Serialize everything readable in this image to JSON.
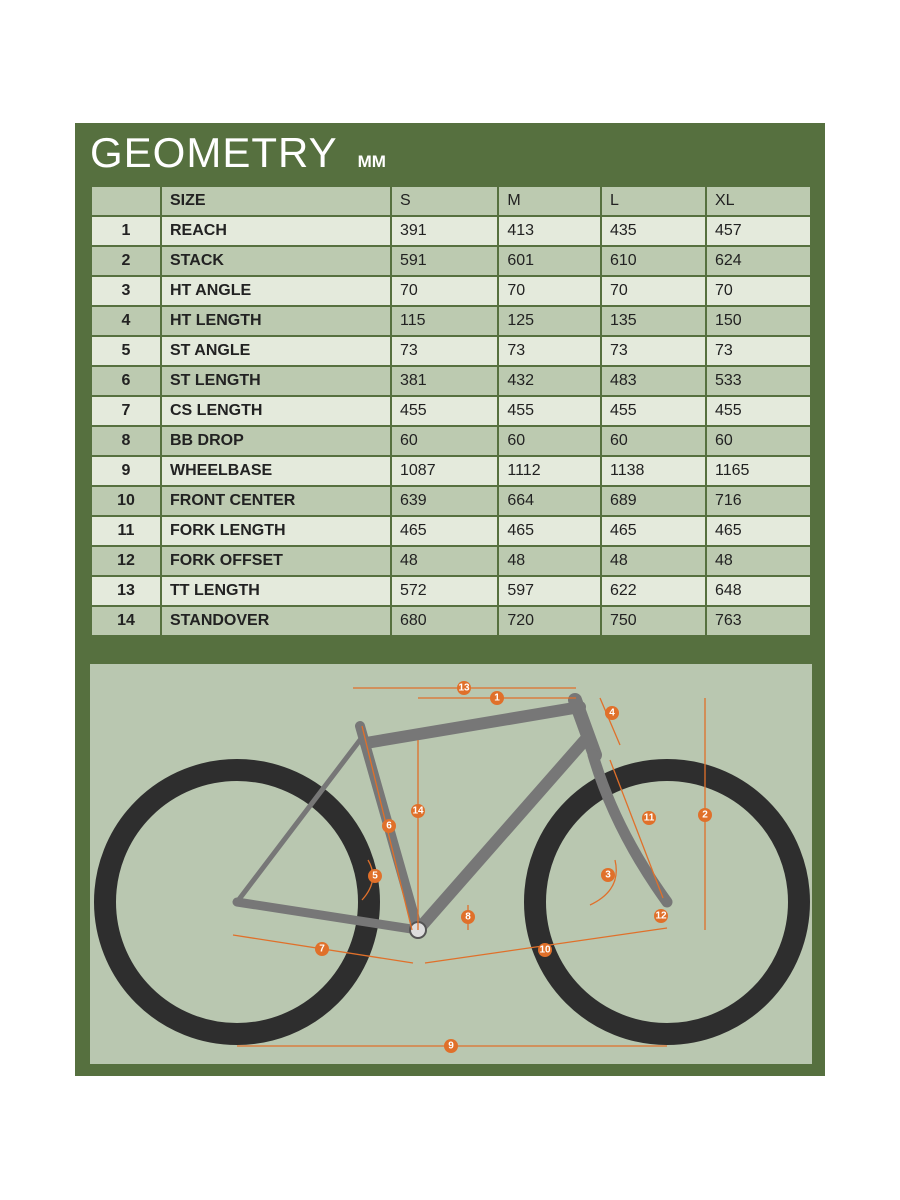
{
  "header": {
    "title": "GEOMETRY",
    "unit": "MM"
  },
  "table": {
    "size_label": "SIZE",
    "sizes": [
      "S",
      "M",
      "L",
      "XL"
    ],
    "rows": [
      {
        "num": "1",
        "name": "REACH",
        "values": [
          "391",
          "413",
          "435",
          "457"
        ]
      },
      {
        "num": "2",
        "name": "STACK",
        "values": [
          "591",
          "601",
          "610",
          "624"
        ]
      },
      {
        "num": "3",
        "name": "HT ANGLE",
        "values": [
          "70",
          "70",
          "70",
          "70"
        ]
      },
      {
        "num": "4",
        "name": "HT LENGTH",
        "values": [
          "115",
          "125",
          "135",
          "150"
        ]
      },
      {
        "num": "5",
        "name": "ST ANGLE",
        "values": [
          "73",
          "73",
          "73",
          "73"
        ]
      },
      {
        "num": "6",
        "name": "ST LENGTH",
        "values": [
          "381",
          "432",
          "483",
          "533"
        ]
      },
      {
        "num": "7",
        "name": "CS LENGTH",
        "values": [
          "455",
          "455",
          "455",
          "455"
        ]
      },
      {
        "num": "8",
        "name": "BB DROP",
        "values": [
          "60",
          "60",
          "60",
          "60"
        ]
      },
      {
        "num": "9",
        "name": "WHEELBASE",
        "values": [
          "1087",
          "1112",
          "1138",
          "1165"
        ]
      },
      {
        "num": "10",
        "name": "FRONT CENTER",
        "values": [
          "639",
          "664",
          "689",
          "716"
        ]
      },
      {
        "num": "11",
        "name": "FORK LENGTH",
        "values": [
          "465",
          "465",
          "465",
          "465"
        ]
      },
      {
        "num": "12",
        "name": "FORK OFFSET",
        "values": [
          "48",
          "48",
          "48",
          "48"
        ]
      },
      {
        "num": "13",
        "name": "TT LENGTH",
        "values": [
          "572",
          "597",
          "622",
          "648"
        ]
      },
      {
        "num": "14",
        "name": "STANDOVER",
        "values": [
          "680",
          "720",
          "750",
          "763"
        ]
      }
    ]
  }
}
